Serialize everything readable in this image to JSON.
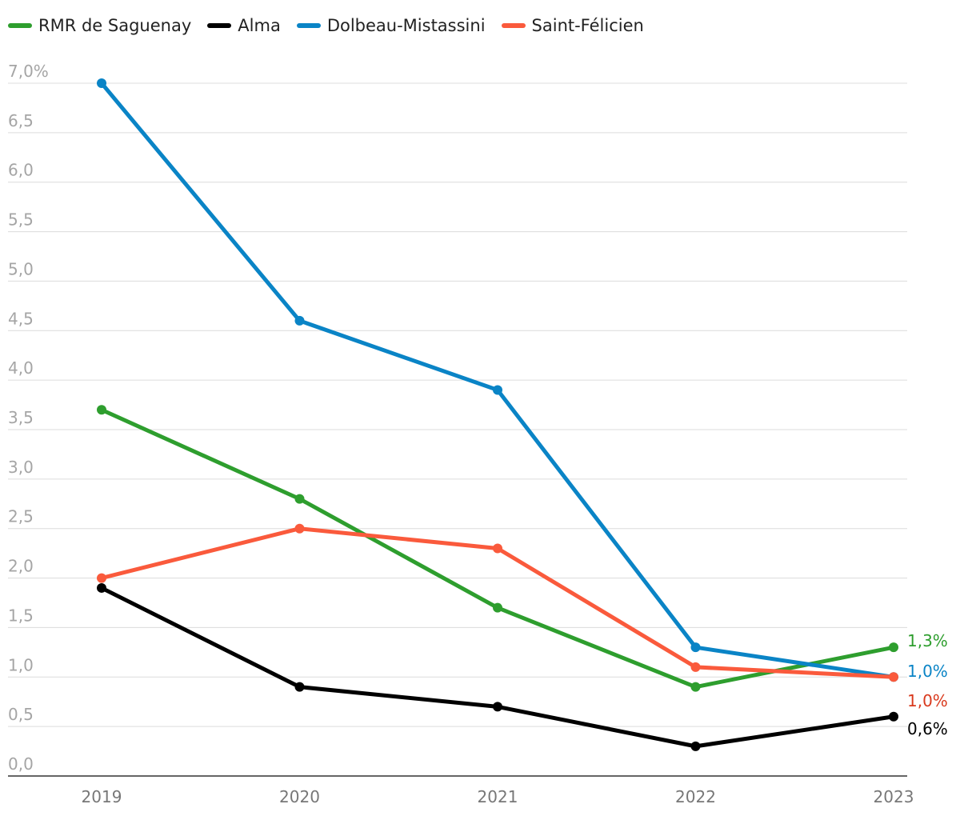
{
  "chart_data": {
    "type": "line",
    "title": "",
    "xlabel": "",
    "ylabel": "",
    "x": [
      "2019",
      "2020",
      "2021",
      "2022",
      "2023"
    ],
    "ylim": [
      0,
      7
    ],
    "yticks": [
      {
        "value": 0,
        "label": "0,0"
      },
      {
        "value": 0.5,
        "label": "0,5"
      },
      {
        "value": 1,
        "label": "1,0"
      },
      {
        "value": 1.5,
        "label": "1,5"
      },
      {
        "value": 2,
        "label": "2,0"
      },
      {
        "value": 2.5,
        "label": "2,5"
      },
      {
        "value": 3,
        "label": "3,0"
      },
      {
        "value": 3.5,
        "label": "3,5"
      },
      {
        "value": 4,
        "label": "4,0"
      },
      {
        "value": 4.5,
        "label": "4,5"
      },
      {
        "value": 5,
        "label": "5,0"
      },
      {
        "value": 5.5,
        "label": "5,5"
      },
      {
        "value": 6,
        "label": "6,0"
      },
      {
        "value": 6.5,
        "label": "6,5"
      },
      {
        "value": 7,
        "label": "7,0%"
      }
    ],
    "grid": true,
    "legend_position": "top-left",
    "series": [
      {
        "name": "RMR de Saguenay",
        "color": "#2e9e2e",
        "values": [
          3.7,
          2.8,
          1.7,
          0.9,
          1.3
        ],
        "end_label": "1,3%",
        "end_label_color": "#2e9e2e"
      },
      {
        "name": "Alma",
        "color": "#000000",
        "values": [
          1.9,
          0.9,
          0.7,
          0.3,
          0.6
        ],
        "end_label": "0,6%",
        "end_label_color": "#000000"
      },
      {
        "name": "Dolbeau-Mistassini",
        "color": "#0a84c6",
        "values": [
          7.0,
          4.6,
          3.9,
          1.3,
          1.0
        ],
        "end_label": "1,0%",
        "end_label_color": "#0a84c6"
      },
      {
        "name": "Saint-Félicien",
        "color": "#fa5a3c",
        "values": [
          2.0,
          2.5,
          2.3,
          1.1,
          1.0
        ],
        "end_label": "1,0%",
        "end_label_color": "#d93a1e"
      }
    ]
  }
}
